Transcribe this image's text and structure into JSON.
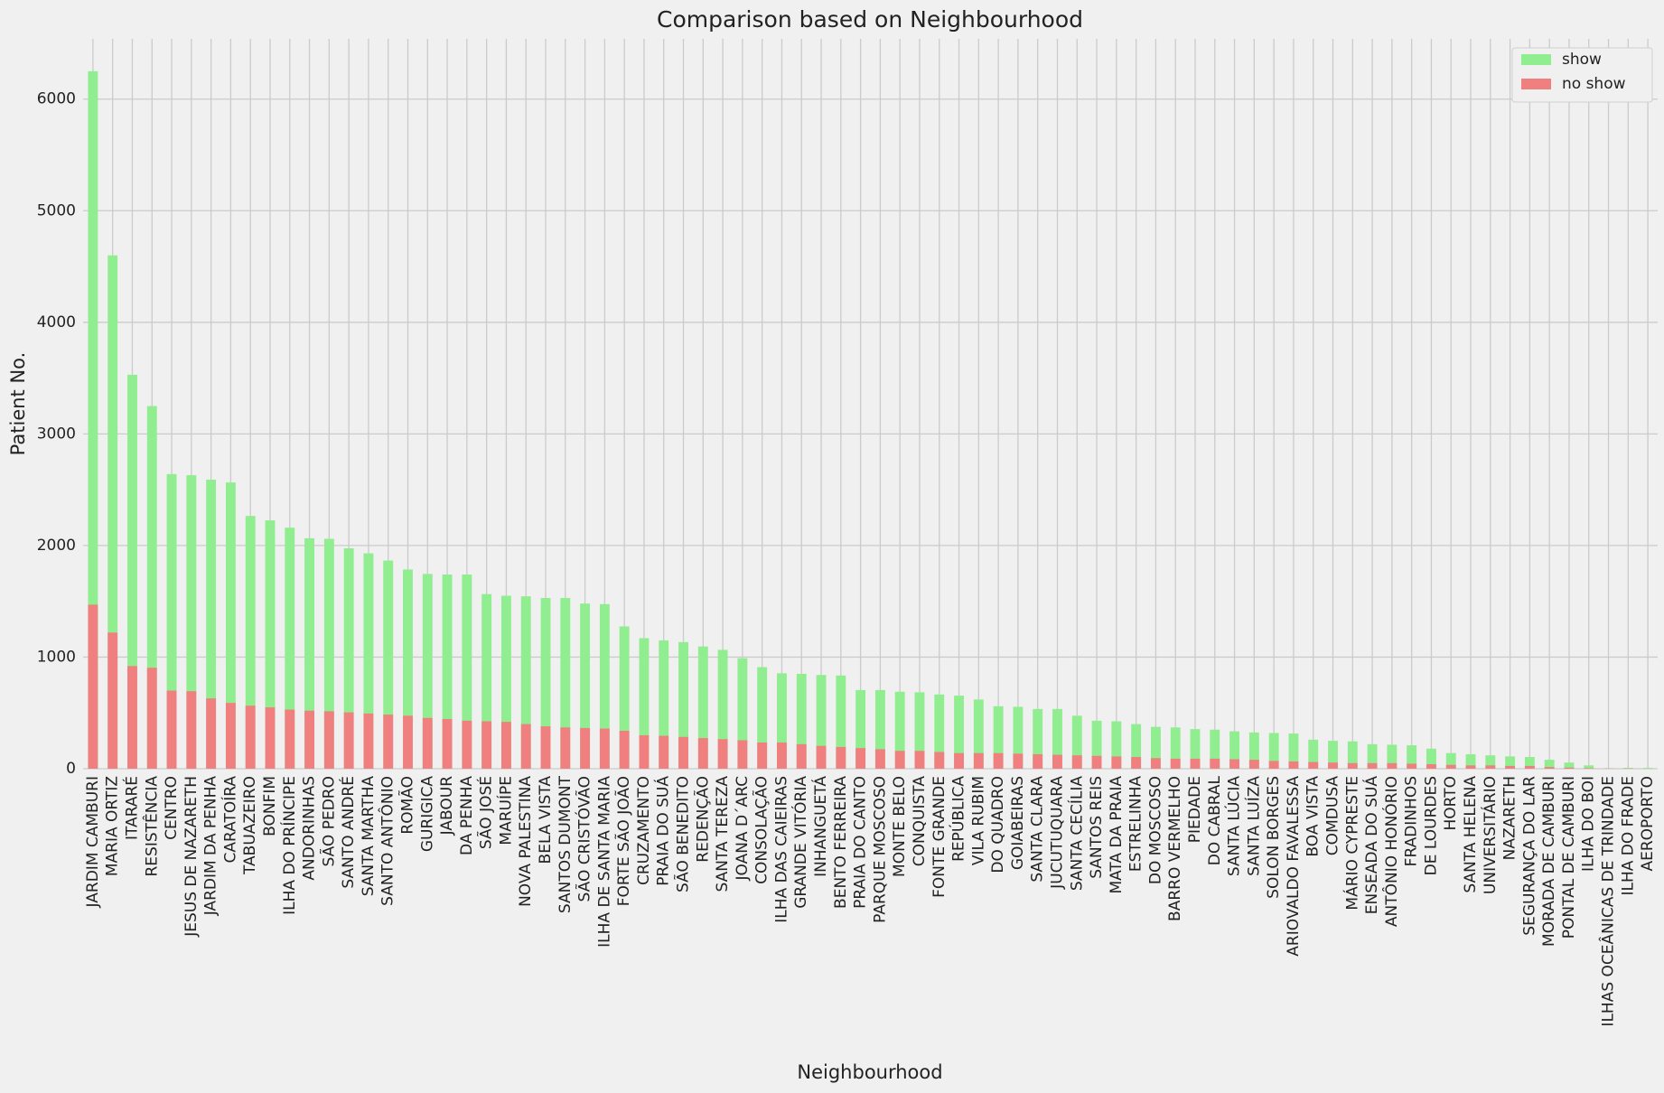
{
  "chart_data": {
    "type": "bar",
    "title": "Comparison based on Neighbourhood",
    "x_label": "Neighbourhood",
    "y_label": "Patient No.",
    "categories": [
      "JARDIM CAMBURI",
      "MARIA ORTIZ",
      "ITARARÉ",
      "RESISTÊNCIA",
      "CENTRO",
      "JESUS DE NAZARETH",
      "JARDIM DA PENHA",
      "CARATOÍRA",
      "TABUAZEIRO",
      "BONFIM",
      "ILHA DO PRÍNCIPE",
      "ANDORINHAS",
      "SÃO PEDRO",
      "SANTO ANDRÉ",
      "SANTA MARTHA",
      "SANTO ANTÔNIO",
      "ROMÃO",
      "GURIGICA",
      "JABOUR",
      "DA PENHA",
      "SÃO JOSÉ",
      "MARUÍPE",
      "NOVA PALESTINA",
      "BELA VISTA",
      "SANTOS DUMONT",
      "SÃO CRISTÓVÃO",
      "ILHA DE SANTA MARIA",
      "FORTE SÃO JOÃO",
      "CRUZAMENTO",
      "PRAIA DO SUÁ",
      "SÃO BENEDITO",
      "REDENÇÃO",
      "SANTA TEREZA",
      "JOANA D´ARC",
      "CONSOLAÇÃO",
      "ILHA DAS CAIEIRAS",
      "GRANDE VITÓRIA",
      "INHANGUETÁ",
      "BENTO FERREIRA",
      "PRAIA DO CANTO",
      "PARQUE MOSCOSO",
      "MONTE BELO",
      "CONQUISTA",
      "FONTE GRANDE",
      "REPÚBLICA",
      "VILA RUBIM",
      "DO QUADRO",
      "GOIABEIRAS",
      "SANTA CLARA",
      "JUCUTUQUARA",
      "SANTA CECÍLIA",
      "SANTOS REIS",
      "MATA DA PRAIA",
      "ESTRELINHA",
      "DO MOSCOSO",
      "BARRO VERMELHO",
      "PIEDADE",
      "DO CABRAL",
      "SANTA LÚCIA",
      "SANTA LUÍZA",
      "SOLON BORGES",
      "ARIOVALDO FAVALESSA",
      "BOA VISTA",
      "COMDUSA",
      "MÁRIO CYPRESTE",
      "ENSEADA DO SUÁ",
      "ANTÔNIO HONÓRIO",
      "FRADINHOS",
      "DE LOURDES",
      "HORTO",
      "SANTA HELENA",
      "UNIVERSITÁRIO",
      "NAZARETH",
      "SEGURANÇA DO LAR",
      "MORADA DE CAMBURI",
      "PONTAL DE CAMBURI",
      "ILHA DO BOI",
      "ILHAS OCEÂNICAS DE TRINDADE",
      "ILHA DO FRADE",
      "AEROPORTO"
    ],
    "series": [
      {
        "name": "show",
        "color": "#90ee90",
        "values": [
          6250,
          4600,
          3530,
          3250,
          2640,
          2630,
          2590,
          2565,
          2265,
          2225,
          2160,
          2065,
          2060,
          1975,
          1930,
          1865,
          1785,
          1745,
          1740,
          1740,
          1565,
          1550,
          1545,
          1530,
          1530,
          1480,
          1475,
          1275,
          1170,
          1150,
          1135,
          1095,
          1065,
          990,
          910,
          855,
          850,
          840,
          835,
          705,
          705,
          690,
          685,
          665,
          655,
          620,
          560,
          555,
          535,
          535,
          475,
          430,
          425,
          400,
          375,
          370,
          355,
          350,
          335,
          325,
          320,
          315,
          260,
          250,
          245,
          220,
          215,
          210,
          180,
          140,
          130,
          120,
          110,
          105,
          80,
          55,
          30,
          2,
          8,
          7
        ]
      },
      {
        "name": "no show",
        "color": "#f08080",
        "values": [
          1470,
          1220,
          920,
          905,
          700,
          695,
          630,
          590,
          565,
          550,
          530,
          520,
          515,
          505,
          495,
          485,
          475,
          455,
          445,
          430,
          425,
          420,
          400,
          380,
          370,
          365,
          360,
          340,
          300,
          295,
          285,
          275,
          265,
          255,
          235,
          235,
          220,
          205,
          195,
          185,
          175,
          160,
          160,
          150,
          140,
          140,
          140,
          135,
          130,
          125,
          120,
          115,
          110,
          105,
          95,
          90,
          90,
          90,
          85,
          80,
          70,
          65,
          60,
          55,
          50,
          50,
          50,
          45,
          40,
          35,
          30,
          30,
          25,
          25,
          15,
          10,
          5,
          2,
          2,
          1
        ]
      }
    ],
    "ylim": [
      0,
      6540
    ],
    "yticks": [
      0,
      1000,
      2000,
      3000,
      4000,
      5000,
      6000
    ],
    "grid": true,
    "legend": "upper right"
  }
}
